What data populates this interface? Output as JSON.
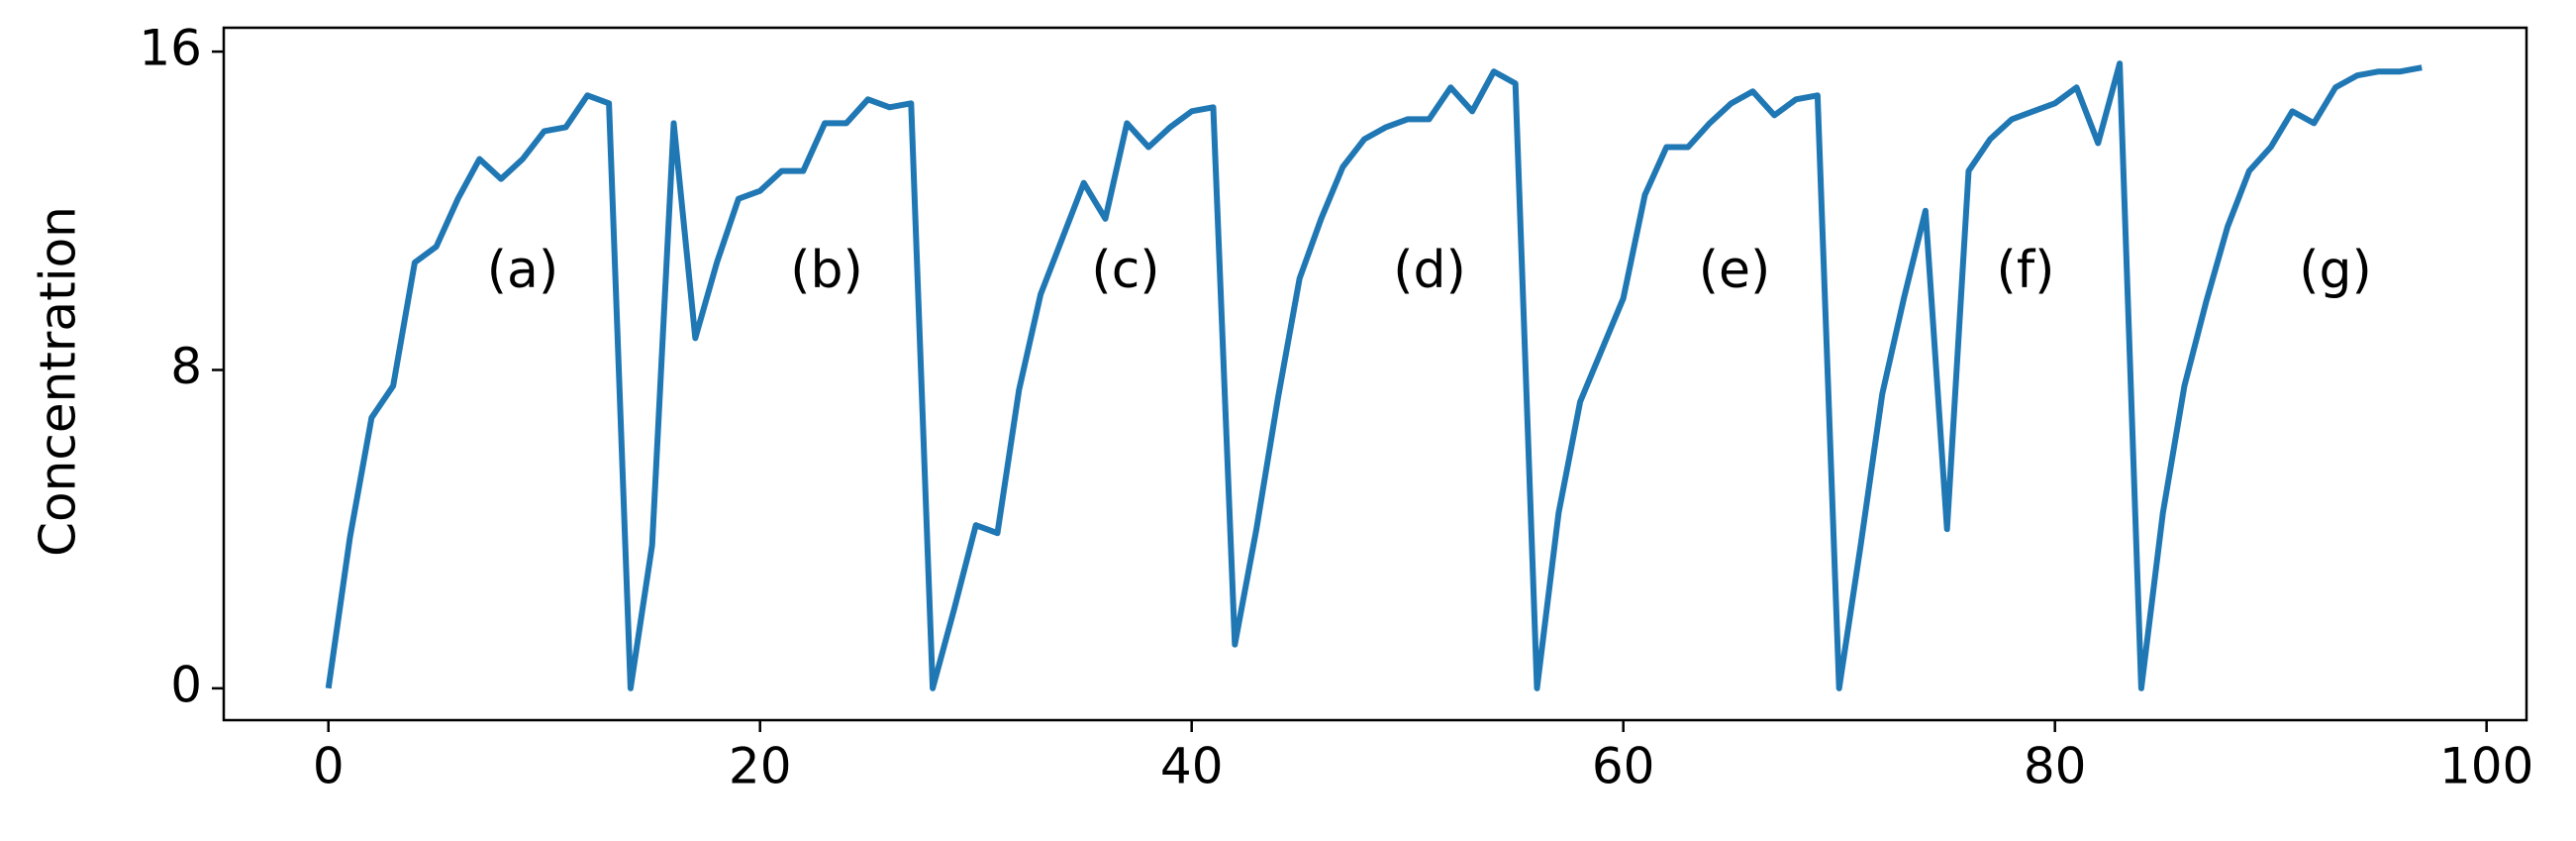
{
  "chart_data": {
    "type": "line",
    "y_label": "Concentration",
    "x": [
      0,
      1,
      2,
      3,
      4,
      5,
      6,
      7,
      8,
      9,
      10,
      11,
      12,
      13,
      14,
      15,
      16,
      17,
      18,
      19,
      20,
      21,
      22,
      23,
      24,
      25,
      26,
      27,
      28,
      29,
      30,
      31,
      32,
      33,
      34,
      35,
      36,
      37,
      38,
      39,
      40,
      41,
      42,
      43,
      44,
      45,
      46,
      47,
      48,
      49,
      50,
      51,
      52,
      53,
      54,
      55,
      56,
      57,
      58,
      59,
      60,
      61,
      62,
      63,
      64,
      65,
      66,
      67,
      68,
      69,
      70,
      71,
      72,
      73,
      74,
      75,
      76,
      77,
      78,
      79,
      80,
      81,
      82,
      83,
      84,
      85,
      86,
      87,
      88,
      89,
      90,
      91,
      92,
      93,
      94,
      95,
      96,
      97
    ],
    "series": [
      {
        "color": "#1f77b4",
        "values": [
          0,
          3.8,
          6.8,
          7.6,
          10.7,
          11.1,
          12.3,
          13.3,
          12.8,
          13.3,
          14.0,
          14.1,
          14.9,
          14.7,
          0,
          3.6,
          14.2,
          8.8,
          10.7,
          12.3,
          12.5,
          13.0,
          13.0,
          14.2,
          14.2,
          14.8,
          14.6,
          14.7,
          0,
          2.0,
          4.1,
          3.9,
          7.5,
          9.9,
          11.3,
          12.7,
          11.8,
          14.2,
          13.6,
          14.1,
          14.5,
          14.6,
          1.1,
          4.0,
          7.3,
          10.3,
          11.8,
          13.1,
          13.8,
          14.1,
          14.3,
          14.3,
          15.1,
          14.5,
          15.5,
          15.2,
          0,
          4.4,
          7.2,
          8.5,
          9.8,
          12.4,
          13.6,
          13.6,
          14.2,
          14.7,
          15.0,
          14.4,
          14.8,
          14.9,
          0,
          3.6,
          7.4,
          9.8,
          12.0,
          4.0,
          13.0,
          13.8,
          14.3,
          14.5,
          14.7,
          15.1,
          13.7,
          15.7,
          0,
          4.4,
          7.6,
          9.7,
          11.6,
          13.0,
          13.6,
          14.5,
          14.2,
          15.1,
          15.4,
          15.5,
          15.5,
          15.6
        ]
      }
    ],
    "annotations": [
      "(a)",
      "(b)",
      "(c)",
      "(d)",
      "(e)",
      "(f)",
      "(g)"
    ],
    "xlim": [
      -4.85,
      101.85
    ],
    "xticks": [
      0,
      20,
      40,
      60,
      80,
      100
    ],
    "ylim": [
      -0.8,
      16.6
    ],
    "yticks": [
      0,
      8,
      16
    ]
  }
}
